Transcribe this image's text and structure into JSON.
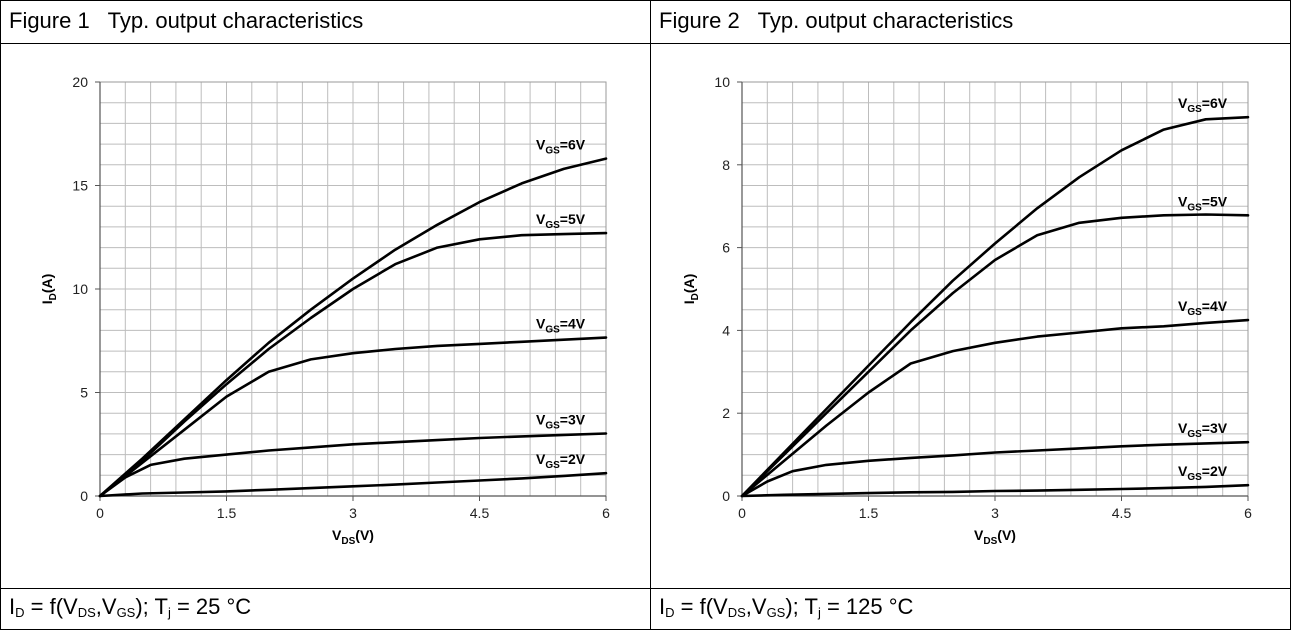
{
  "charts": [
    {
      "title": "Figure 1   Typ. output characteristics",
      "caption": {
        "parts": [
          {
            "t": "I"
          },
          {
            "t": "D",
            "sub": true
          },
          {
            "t": " = f(V"
          },
          {
            "t": "DS",
            "sub": true
          },
          {
            "t": ",V"
          },
          {
            "t": "GS",
            "sub": true
          },
          {
            "t": "); T"
          },
          {
            "t": "j",
            "sub": true
          },
          {
            "t": " = 25 °C"
          }
        ]
      }
    },
    {
      "title": "Figure 2   Typ. output characteristics",
      "caption": {
        "parts": [
          {
            "t": "I"
          },
          {
            "t": "D",
            "sub": true
          },
          {
            "t": " = f(V"
          },
          {
            "t": "DS",
            "sub": true
          },
          {
            "t": ",V"
          },
          {
            "t": "GS",
            "sub": true
          },
          {
            "t": "); T"
          },
          {
            "t": "j",
            "sub": true
          },
          {
            "t": " = 125 °C"
          }
        ]
      }
    }
  ],
  "chart_data": [
    {
      "type": "line",
      "xlabel": "V_DS(V)",
      "ylabel": "I_D(A)",
      "xlim": [
        0,
        6
      ],
      "ylim": [
        0,
        20
      ],
      "xticks": [
        "0",
        "1.5",
        "3",
        "4.5",
        "6"
      ],
      "yticks": [
        "0",
        "5",
        "10",
        "15",
        "20"
      ],
      "grid": true,
      "series": [
        {
          "name": "V_GS=6V",
          "x": [
            0,
            0.5,
            1,
            1.5,
            2,
            2.5,
            3,
            3.5,
            4,
            4.5,
            5,
            5.5,
            6
          ],
          "y": [
            0,
            1.8,
            3.7,
            5.6,
            7.4,
            9.0,
            10.5,
            11.9,
            13.1,
            14.2,
            15.1,
            15.8,
            16.3
          ]
        },
        {
          "name": "V_GS=5V",
          "x": [
            0,
            0.5,
            1,
            1.5,
            2,
            2.5,
            3,
            3.5,
            4,
            4.5,
            5,
            5.5,
            6
          ],
          "y": [
            0,
            1.7,
            3.6,
            5.4,
            7.1,
            8.6,
            10.0,
            11.2,
            12.0,
            12.4,
            12.6,
            12.65,
            12.7
          ]
        },
        {
          "name": "V_GS=4V",
          "x": [
            0,
            0.5,
            1,
            1.5,
            2,
            2.5,
            3,
            3.5,
            4,
            4.5,
            5,
            5.5,
            6
          ],
          "y": [
            0,
            1.6,
            3.2,
            4.8,
            6.0,
            6.6,
            6.9,
            7.1,
            7.25,
            7.35,
            7.45,
            7.55,
            7.65
          ]
        },
        {
          "name": "V_GS=3V",
          "x": [
            0,
            0.3,
            0.6,
            1,
            1.5,
            2,
            2.5,
            3,
            3.5,
            4,
            4.5,
            5,
            5.5,
            6
          ],
          "y": [
            0,
            0.9,
            1.5,
            1.8,
            2.0,
            2.2,
            2.35,
            2.5,
            2.6,
            2.7,
            2.8,
            2.88,
            2.95,
            3.02
          ]
        },
        {
          "name": "V_GS=2V",
          "x": [
            0,
            0.5,
            1,
            1.5,
            2,
            2.5,
            3,
            3.5,
            4,
            4.5,
            5,
            5.5,
            6
          ],
          "y": [
            0,
            0.12,
            0.17,
            0.22,
            0.3,
            0.38,
            0.47,
            0.55,
            0.65,
            0.75,
            0.85,
            0.97,
            1.1
          ]
        }
      ]
    },
    {
      "type": "line",
      "xlabel": "V_DS(V)",
      "ylabel": "I_D(A)",
      "xlim": [
        0,
        6
      ],
      "ylim": [
        0,
        10
      ],
      "xticks": [
        "0",
        "1.5",
        "3",
        "4.5",
        "6"
      ],
      "yticks": [
        "0",
        "2",
        "4",
        "6",
        "8",
        "10"
      ],
      "grid": true,
      "series": [
        {
          "name": "V_GS=6V",
          "x": [
            0,
            0.5,
            1,
            1.5,
            2,
            2.5,
            3,
            3.5,
            4,
            4.5,
            5,
            5.5,
            6
          ],
          "y": [
            0,
            1.05,
            2.1,
            3.15,
            4.2,
            5.2,
            6.1,
            6.95,
            7.7,
            8.35,
            8.85,
            9.1,
            9.15
          ]
        },
        {
          "name": "V_GS=5V",
          "x": [
            0,
            0.5,
            1,
            1.5,
            2,
            2.5,
            3,
            3.5,
            4,
            4.5,
            5,
            5.5,
            6
          ],
          "y": [
            0,
            1.0,
            2.0,
            3.0,
            4.0,
            4.9,
            5.7,
            6.3,
            6.6,
            6.72,
            6.78,
            6.8,
            6.78
          ]
        },
        {
          "name": "V_GS=4V",
          "x": [
            0,
            0.5,
            1,
            1.5,
            2,
            2.5,
            3,
            3.5,
            4,
            4.5,
            5,
            5.5,
            6
          ],
          "y": [
            0,
            0.85,
            1.7,
            2.5,
            3.2,
            3.5,
            3.7,
            3.85,
            3.95,
            4.05,
            4.1,
            4.18,
            4.25
          ]
        },
        {
          "name": "V_GS=3V",
          "x": [
            0,
            0.3,
            0.6,
            1,
            1.5,
            2,
            2.5,
            3,
            3.5,
            4,
            4.5,
            5,
            5.5,
            6
          ],
          "y": [
            0,
            0.35,
            0.6,
            0.75,
            0.85,
            0.92,
            0.98,
            1.05,
            1.1,
            1.15,
            1.2,
            1.24,
            1.27,
            1.3
          ]
        },
        {
          "name": "V_GS=2V",
          "x": [
            0,
            0.5,
            1,
            1.5,
            2,
            2.5,
            3,
            3.5,
            4,
            4.5,
            5,
            5.5,
            6
          ],
          "y": [
            0,
            0.03,
            0.05,
            0.07,
            0.09,
            0.1,
            0.12,
            0.13,
            0.15,
            0.17,
            0.19,
            0.22,
            0.26
          ]
        }
      ]
    }
  ]
}
